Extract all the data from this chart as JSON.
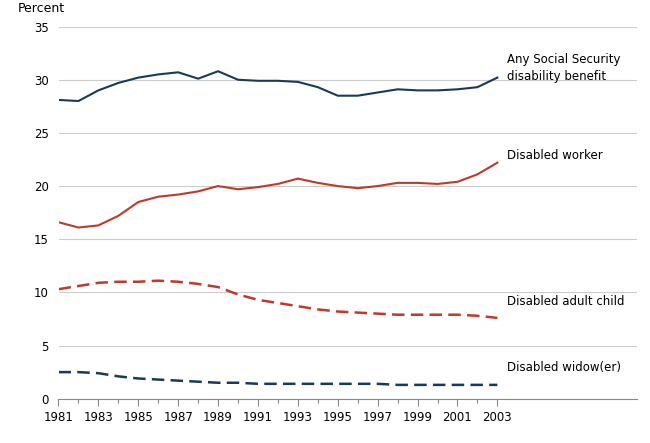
{
  "years": [
    1981,
    1982,
    1983,
    1984,
    1985,
    1986,
    1987,
    1988,
    1989,
    1990,
    1991,
    1992,
    1993,
    1994,
    1995,
    1996,
    1997,
    1998,
    1999,
    2000,
    2001,
    2002,
    2003
  ],
  "any_ss_benefit": [
    28.1,
    28.0,
    29.0,
    29.7,
    30.2,
    30.5,
    30.7,
    30.1,
    30.8,
    30.0,
    29.9,
    29.9,
    29.8,
    29.3,
    28.5,
    28.5,
    28.8,
    29.1,
    29.0,
    29.0,
    29.1,
    29.3,
    30.2
  ],
  "disabled_worker": [
    16.6,
    16.1,
    16.3,
    17.2,
    18.5,
    19.0,
    19.2,
    19.5,
    20.0,
    19.7,
    19.9,
    20.2,
    20.7,
    20.3,
    20.0,
    19.8,
    20.0,
    20.3,
    20.3,
    20.2,
    20.4,
    21.1,
    22.2
  ],
  "disabled_adult_child": [
    10.3,
    10.6,
    10.9,
    11.0,
    11.0,
    11.1,
    11.0,
    10.8,
    10.5,
    9.8,
    9.3,
    9.0,
    8.7,
    8.4,
    8.2,
    8.1,
    8.0,
    7.9,
    7.9,
    7.9,
    7.9,
    7.8,
    7.6
  ],
  "disabled_widow": [
    2.5,
    2.5,
    2.4,
    2.1,
    1.9,
    1.8,
    1.7,
    1.6,
    1.5,
    1.5,
    1.4,
    1.4,
    1.4,
    1.4,
    1.4,
    1.4,
    1.4,
    1.3,
    1.3,
    1.3,
    1.3,
    1.3,
    1.3
  ],
  "ylabel": "Percent",
  "ylim": [
    0,
    35
  ],
  "yticks": [
    0,
    5,
    10,
    15,
    20,
    25,
    30,
    35
  ],
  "xtick_years": [
    1981,
    1983,
    1985,
    1987,
    1989,
    1991,
    1993,
    1995,
    1997,
    1999,
    2001,
    2003
  ],
  "xtick_labels": [
    "1981",
    "1983",
    "1985",
    "1987",
    "1989",
    "1991",
    "1993",
    "1995",
    "1997",
    "1999",
    "2001",
    "2003"
  ],
  "color_dark_blue": "#1a3a5c",
  "color_red": "#c0392b",
  "background_color": "#ffffff",
  "grid_color": "#cccccc",
  "label_any_ss": "Any Social Security\ndisability benefit",
  "label_worker": "Disabled worker",
  "label_adult_child": "Disabled adult child",
  "label_widow": "Disabled widow(er)",
  "xlim_left": 1981,
  "xlim_right": 2003
}
